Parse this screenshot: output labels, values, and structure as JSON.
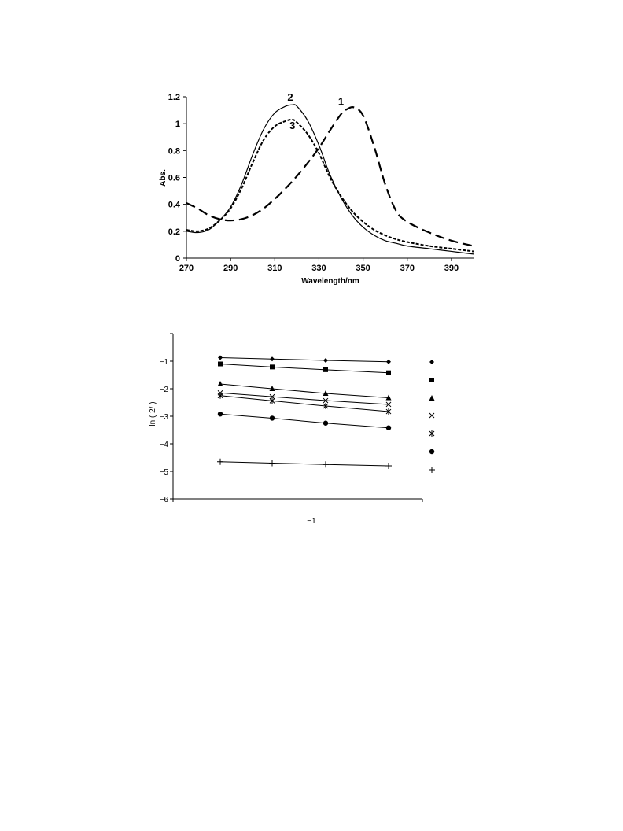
{
  "chart_data": [
    {
      "type": "line",
      "xlabel": "Wavelength/nm",
      "ylabel": "Abs.",
      "xlim": [
        270,
        400
      ],
      "ylim": [
        0,
        1.2
      ],
      "xticks": [
        "270",
        "290",
        "310",
        "330",
        "350",
        "370",
        "390"
      ],
      "yticks": [
        "0",
        "0.2",
        "0.4",
        "0.6",
        "0.8",
        "1",
        "1.2"
      ],
      "grid": false,
      "legend": "none",
      "series": [
        {
          "name": "1",
          "style": "long-dash",
          "x": [
            270,
            275,
            280,
            285,
            290,
            295,
            300,
            305,
            310,
            315,
            320,
            325,
            330,
            335,
            340,
            343,
            346,
            350,
            355,
            360,
            365,
            370,
            380,
            390,
            400
          ],
          "y": [
            0.41,
            0.37,
            0.32,
            0.29,
            0.28,
            0.29,
            0.32,
            0.37,
            0.44,
            0.52,
            0.61,
            0.71,
            0.82,
            0.95,
            1.07,
            1.11,
            1.12,
            1.06,
            0.83,
            0.55,
            0.35,
            0.27,
            0.19,
            0.13,
            0.09
          ]
        },
        {
          "name": "2",
          "style": "solid",
          "x": [
            270,
            275,
            280,
            285,
            290,
            295,
            300,
            305,
            310,
            315,
            318,
            320,
            325,
            330,
            335,
            340,
            345,
            350,
            355,
            360,
            365,
            370,
            380,
            390,
            400
          ],
          "y": [
            0.2,
            0.19,
            0.21,
            0.28,
            0.38,
            0.55,
            0.77,
            0.96,
            1.08,
            1.13,
            1.14,
            1.13,
            1.02,
            0.84,
            0.62,
            0.45,
            0.32,
            0.23,
            0.17,
            0.13,
            0.11,
            0.09,
            0.07,
            0.05,
            0.03
          ]
        },
        {
          "name": "3",
          "style": "short-dash",
          "x": [
            270,
            275,
            280,
            285,
            290,
            295,
            300,
            305,
            310,
            315,
            318,
            320,
            325,
            330,
            335,
            340,
            345,
            350,
            355,
            360,
            365,
            370,
            380,
            390,
            400
          ],
          "y": [
            0.21,
            0.2,
            0.22,
            0.28,
            0.37,
            0.52,
            0.71,
            0.88,
            0.98,
            1.02,
            1.03,
            1.01,
            0.92,
            0.78,
            0.6,
            0.46,
            0.35,
            0.27,
            0.21,
            0.17,
            0.14,
            0.12,
            0.09,
            0.07,
            0.05
          ]
        }
      ],
      "annotations": [
        {
          "text": "1",
          "x": 340,
          "y": 1.14
        },
        {
          "text": "2",
          "x": 317,
          "y": 1.17
        },
        {
          "text": "3",
          "x": 318,
          "y": 0.96
        }
      ]
    },
    {
      "type": "scatter",
      "ylabel": "ln (  2/  )",
      "xlabel": "−1",
      "ylim": [
        -6,
        0
      ],
      "yticks": [
        "−1",
        "−2",
        "−3",
        "−4",
        "−5",
        "−6"
      ],
      "grid": false,
      "legend": "right",
      "x": [
        1,
        2,
        3,
        4
      ],
      "xlim": [
        0,
        5
      ],
      "series": [
        {
          "marker": "diamond",
          "values": [
            -0.87,
            -0.92,
            -0.97,
            -1.02
          ]
        },
        {
          "marker": "square",
          "values": [
            -1.1,
            -1.21,
            -1.31,
            -1.42
          ]
        },
        {
          "marker": "triangle",
          "values": [
            -1.83,
            -2.0,
            -2.17,
            -2.33
          ]
        },
        {
          "marker": "x",
          "values": [
            -2.15,
            -2.29,
            -2.43,
            -2.57
          ]
        },
        {
          "marker": "star",
          "values": [
            -2.25,
            -2.44,
            -2.63,
            -2.83
          ]
        },
        {
          "marker": "circle",
          "values": [
            -2.92,
            -3.07,
            -3.25,
            -3.42
          ]
        },
        {
          "marker": "plus",
          "values": [
            -4.65,
            -4.7,
            -4.75,
            -4.8
          ]
        }
      ]
    }
  ]
}
